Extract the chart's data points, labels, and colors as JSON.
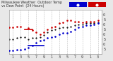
{
  "bg_color": "#e8e8e8",
  "plot_bg_color": "#ffffff",
  "grid_color": "#bbbbbb",
  "x_ticks": [
    0,
    2,
    4,
    6,
    8,
    10,
    12,
    14,
    16,
    18,
    20,
    22
  ],
  "x_tick_labels": [
    "1",
    "3",
    "5",
    "7",
    "9",
    "1",
    "3",
    "5",
    "7",
    "9",
    "1",
    "3"
  ],
  "ylim": [
    30,
    75
  ],
  "y_ticks": [
    35,
    40,
    45,
    50,
    55,
    60,
    65,
    70
  ],
  "y_tick_labels": [
    "5",
    "0",
    "5",
    "0",
    "5",
    "0",
    "5",
    "0"
  ],
  "temp_x": [
    0,
    1,
    2,
    3,
    5,
    6,
    7,
    8,
    9,
    10,
    11,
    12,
    13,
    14,
    15,
    16,
    17,
    18,
    19,
    20,
    21,
    22,
    23
  ],
  "temp_y": [
    57,
    57,
    58,
    58,
    56,
    54,
    52,
    50,
    52,
    55,
    57,
    58,
    61,
    62,
    64,
    64,
    63,
    63,
    62,
    63,
    63,
    63,
    64
  ],
  "dew_x": [
    0,
    1,
    2,
    3,
    4,
    5,
    6,
    7,
    8,
    9,
    10,
    11,
    12,
    13,
    14,
    15,
    16,
    17,
    18,
    19,
    20,
    21,
    22,
    23
  ],
  "dew_y": [
    33,
    33,
    34,
    34,
    35,
    36,
    38,
    41,
    43,
    44,
    46,
    47,
    48,
    50,
    51,
    51,
    53,
    55,
    57,
    58,
    59,
    59,
    60,
    61
  ],
  "extra_x": [
    0,
    1,
    2,
    3,
    4,
    5,
    6,
    7,
    8,
    9,
    10,
    11,
    12,
    13,
    14,
    15,
    16,
    17,
    18,
    19,
    20,
    21,
    22,
    23
  ],
  "extra_y": [
    45,
    45,
    46,
    47,
    47,
    45,
    46,
    46,
    47,
    49,
    52,
    54,
    55,
    56,
    57,
    57,
    58,
    59,
    60,
    60,
    61,
    61,
    61,
    62
  ],
  "temp_color": "#cc0000",
  "dew_color": "#0000cc",
  "extra_color": "#000000",
  "tick_fontsize": 3.5
}
